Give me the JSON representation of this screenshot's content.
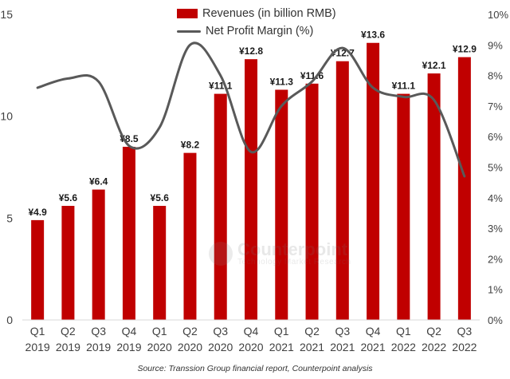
{
  "chart_data": {
    "type": "bar",
    "categories": [
      [
        "Q1",
        "2019"
      ],
      [
        "Q2",
        "2019"
      ],
      [
        "Q3",
        "2019"
      ],
      [
        "Q4",
        "2019"
      ],
      [
        "Q1",
        "2020"
      ],
      [
        "Q2",
        "2020"
      ],
      [
        "Q3",
        "2020"
      ],
      [
        "Q4",
        "2020"
      ],
      [
        "Q1",
        "2021"
      ],
      [
        "Q2",
        "2021"
      ],
      [
        "Q3",
        "2021"
      ],
      [
        "Q4",
        "2021"
      ],
      [
        "Q1",
        "2022"
      ],
      [
        "Q2",
        "2022"
      ],
      [
        "Q3",
        "2022"
      ]
    ],
    "series": [
      {
        "name": "Revenues (in billion RMB)",
        "type": "bar",
        "axis": "left",
        "color": "#c00000",
        "values": [
          4.9,
          5.6,
          6.4,
          8.5,
          5.6,
          8.2,
          11.1,
          12.8,
          11.3,
          11.6,
          12.7,
          13.6,
          11.1,
          12.1,
          12.9
        ],
        "labels": [
          "¥4.9",
          "¥5.6",
          "¥6.4",
          "¥8.5",
          "¥5.6",
          "¥8.2",
          "¥11.1",
          "¥12.8",
          "¥11.3",
          "¥11.6",
          "¥12.7",
          "¥13.6",
          "¥11.1",
          "¥12.1",
          "¥12.9"
        ]
      },
      {
        "name": "Net Profit Margin (%)",
        "type": "line",
        "axis": "right",
        "color": "#595959",
        "values": [
          7.6,
          7.9,
          7.8,
          5.7,
          6.3,
          9.0,
          8.0,
          5.5,
          7.0,
          7.8,
          8.9,
          7.6,
          7.3,
          7.2,
          4.7
        ]
      }
    ],
    "y_left": {
      "ylim": [
        0,
        15
      ],
      "ticks": [
        "0",
        "5",
        "10",
        "15"
      ],
      "tick_values": [
        0,
        5,
        10,
        15
      ]
    },
    "y_right": {
      "ylim": [
        0,
        10
      ],
      "ticks": [
        "0%",
        "1%",
        "2%",
        "3%",
        "4%",
        "5%",
        "6%",
        "7%",
        "8%",
        "9%",
        "10%"
      ],
      "tick_values": [
        0,
        1,
        2,
        3,
        4,
        5,
        6,
        7,
        8,
        9,
        10
      ]
    },
    "grid": false,
    "legend_position": "top-center"
  },
  "source_text": "Source: Transsion Group financial report, Counterpoint analysis",
  "watermark": {
    "name": "Counterpoint",
    "tagline": "Technology Market Research"
  }
}
